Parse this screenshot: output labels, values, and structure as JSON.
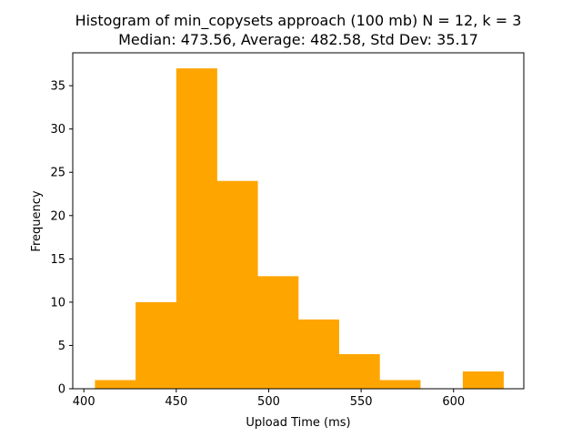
{
  "chart_data": {
    "type": "bar",
    "title": "Histogram of min_copysets approach (100 mb) N = 12, k = 3",
    "subtitle": "Median: 473.56, Average: 482.58, Std Dev: 35.17",
    "xlabel": "Upload Time (ms)",
    "ylabel": "Frequency",
    "xlim": [
      394,
      638
    ],
    "ylim": [
      0,
      38.8
    ],
    "xticks": [
      400,
      450,
      500,
      550,
      600
    ],
    "yticks": [
      0,
      5,
      10,
      15,
      20,
      25,
      30,
      35
    ],
    "bar_color": "#FFA500",
    "bins": [
      {
        "start": 406,
        "end": 428,
        "value": 1
      },
      {
        "start": 428,
        "end": 450,
        "value": 10
      },
      {
        "start": 450,
        "end": 472,
        "value": 37
      },
      {
        "start": 472,
        "end": 494,
        "value": 24
      },
      {
        "start": 494,
        "end": 516,
        "value": 13
      },
      {
        "start": 516,
        "end": 538,
        "value": 8
      },
      {
        "start": 538,
        "end": 560,
        "value": 4
      },
      {
        "start": 560,
        "end": 582,
        "value": 1
      },
      {
        "start": 582,
        "end": 605,
        "value": 0
      },
      {
        "start": 605,
        "end": 627,
        "value": 2
      }
    ],
    "grid": false,
    "legend": null
  }
}
